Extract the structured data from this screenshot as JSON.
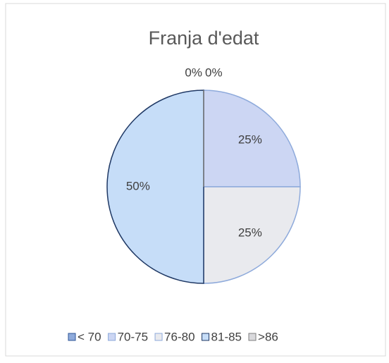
{
  "chart_data": {
    "type": "pie",
    "title": "Franja d'edat",
    "categories": [
      "< 70",
      "70-75",
      "76-80",
      "81-85",
      ">86"
    ],
    "values": [
      0,
      25,
      25,
      50,
      0
    ],
    "value_labels": [
      "0%",
      "25%",
      "25%",
      "50%",
      "0%"
    ],
    "colors": [
      "#8eaadb",
      "#ccd6f3",
      "#e9eaee",
      "#c6ddf8",
      "#d9d9dc"
    ],
    "strokes": [
      "#2f5597",
      "#8eaadb",
      "#8eaadb",
      "#1f3864",
      "#7f7f7f"
    ],
    "legend": "bottom"
  }
}
